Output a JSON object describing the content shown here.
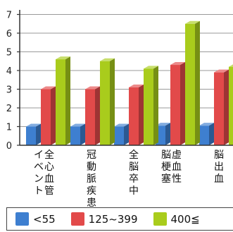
{
  "chart_data": {
    "type": "bar",
    "ylim": [
      0,
      7
    ],
    "yticks": [
      "0",
      "1",
      "2",
      "3",
      "4",
      "5",
      "6",
      "7"
    ],
    "grid": true,
    "categories": [
      [
        "全心血管",
        "イベント"
      ],
      [
        "冠動脈疾患"
      ],
      [
        "全脳卒中"
      ],
      [
        "虚血性",
        "脳梗塞"
      ],
      [
        "脳出血"
      ]
    ],
    "series": [
      {
        "name": "<55",
        "color": "#3e7fd0",
        "values": [
          1.0,
          1.0,
          1.0,
          1.05,
          1.05
        ]
      },
      {
        "name": "125~399",
        "color": "#e24a4a",
        "values": [
          3.0,
          3.0,
          3.1,
          4.3,
          3.9
        ]
      },
      {
        "name": "400≦",
        "color": "#a9cc1c",
        "values": [
          4.6,
          4.5,
          4.1,
          6.5,
          4.2
        ]
      }
    ]
  }
}
